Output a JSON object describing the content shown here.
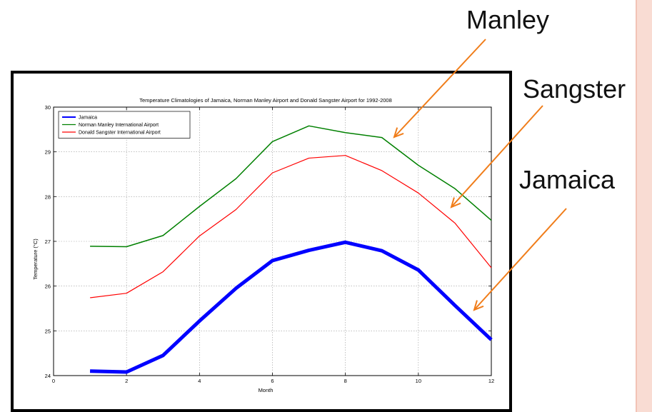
{
  "callouts": {
    "manley": "Manley",
    "sangster": "Sangster",
    "jamaica": "Jamaica"
  },
  "colors": {
    "arrow": "#f07d1a",
    "frame": "#000000",
    "side_strip": "#f9dcd3"
  },
  "chart_data": {
    "type": "line",
    "title": "Temperature Climatologies of Jamaica, Norman Manley Airport and Donald Sangster Airport for 1992-2008",
    "xlabel": "Month",
    "ylabel": "Temperature (°C)",
    "xlim": [
      0,
      12
    ],
    "ylim": [
      24,
      30
    ],
    "xticks": [
      0,
      2,
      4,
      6,
      8,
      10,
      12
    ],
    "yticks": [
      24,
      25,
      26,
      27,
      28,
      29,
      30
    ],
    "grid": true,
    "legend_position": "top-left",
    "x": [
      1,
      2,
      3,
      4,
      5,
      6,
      7,
      8,
      9,
      10,
      11,
      12
    ],
    "series": [
      {
        "name": "Jamaica",
        "color": "#0000ff",
        "values": [
          24.1,
          24.08,
          24.45,
          25.22,
          25.95,
          26.57,
          26.8,
          26.98,
          26.79,
          26.36,
          25.57,
          24.8
        ]
      },
      {
        "name": "Norman Manley International Airport",
        "color": "#008000",
        "values": [
          26.89,
          26.88,
          27.13,
          27.78,
          28.4,
          29.23,
          29.58,
          29.43,
          29.32,
          28.7,
          28.18,
          27.47
        ]
      },
      {
        "name": "Donald Sangster International Airport",
        "color": "#ff0000",
        "values": [
          25.74,
          25.84,
          26.32,
          27.12,
          27.71,
          28.53,
          28.86,
          28.92,
          28.58,
          28.08,
          27.41,
          26.41
        ]
      }
    ]
  }
}
